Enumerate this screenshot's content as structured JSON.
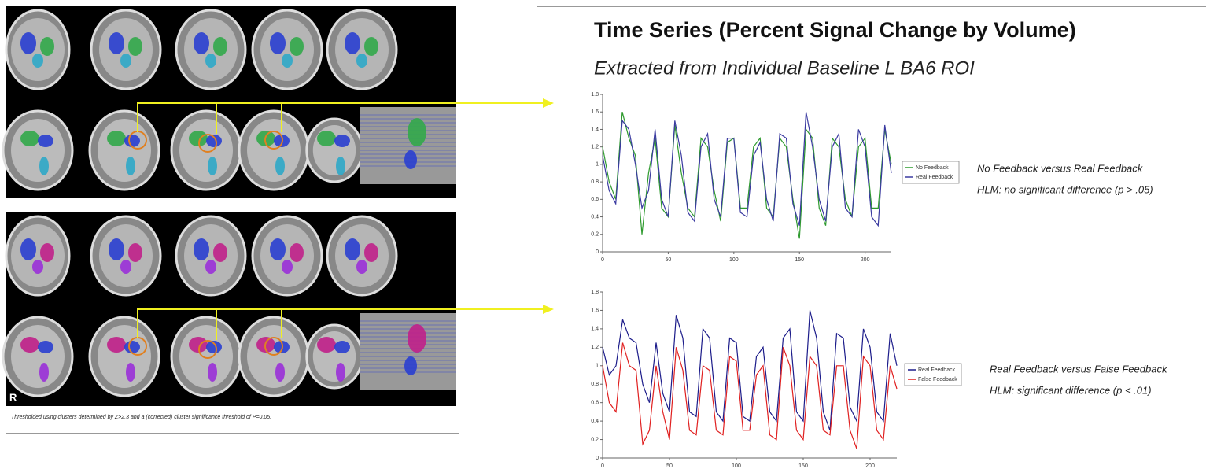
{
  "title": "Time Series (Percent Signal Change by Volume)",
  "subtitle": "Extracted from Individual Baseline L BA6 ROI",
  "panel_label": "R",
  "footnote": "Thresholded using clusters determined by Z>2.3 and a (corrected) cluster significance threshold of P=0.05.",
  "chart_data": [
    {
      "type": "line",
      "xlim": [
        0,
        220
      ],
      "ylim": [
        0,
        1.8
      ],
      "xticks": [
        0,
        50,
        100,
        150,
        200
      ],
      "yticks": [
        0,
        0.2,
        0.4,
        0.6,
        0.8,
        1,
        1.2,
        1.4,
        1.6,
        1.8
      ],
      "legend": "right",
      "x": [
        0,
        5,
        10,
        15,
        20,
        25,
        30,
        35,
        40,
        45,
        50,
        55,
        60,
        65,
        70,
        75,
        80,
        85,
        90,
        95,
        100,
        105,
        110,
        115,
        120,
        125,
        130,
        135,
        140,
        145,
        150,
        155,
        160,
        165,
        170,
        175,
        180,
        185,
        190,
        195,
        200,
        205,
        210,
        215,
        220
      ],
      "series": [
        {
          "name": "No Feedback",
          "color": "#2e9a2e",
          "values": [
            1.2,
            0.8,
            0.6,
            1.6,
            1.3,
            1.1,
            0.2,
            0.9,
            1.3,
            0.5,
            0.4,
            1.45,
            0.9,
            0.5,
            0.4,
            1.3,
            1.2,
            0.7,
            0.35,
            1.25,
            1.3,
            0.5,
            0.5,
            1.2,
            1.3,
            0.5,
            0.4,
            1.3,
            1.2,
            0.6,
            0.15,
            1.4,
            1.3,
            0.5,
            0.3,
            1.3,
            1.2,
            0.6,
            0.4,
            1.2,
            1.3,
            0.5,
            0.5,
            1.4,
            1.0
          ]
        },
        {
          "name": "Real Feedback",
          "color": "#3a3aa0",
          "values": [
            1.1,
            0.7,
            0.55,
            1.5,
            1.4,
            1.0,
            0.5,
            0.7,
            1.4,
            0.6,
            0.4,
            1.5,
            1.1,
            0.45,
            0.35,
            1.2,
            1.35,
            0.6,
            0.4,
            1.3,
            1.3,
            0.45,
            0.4,
            1.1,
            1.25,
            0.6,
            0.35,
            1.35,
            1.3,
            0.55,
            0.3,
            1.6,
            1.2,
            0.6,
            0.35,
            1.2,
            1.35,
            0.5,
            0.4,
            1.4,
            1.2,
            0.4,
            0.3,
            1.45,
            0.9
          ]
        }
      ],
      "annotations": [
        "No Feedback versus Real Feedback",
        "HLM: no significant difference (p > .05)"
      ]
    },
    {
      "type": "line",
      "xlim": [
        0,
        220
      ],
      "ylim": [
        0,
        1.8
      ],
      "xticks": [
        0,
        50,
        100,
        150,
        200
      ],
      "yticks": [
        0,
        0.2,
        0.4,
        0.6,
        0.8,
        1,
        1.2,
        1.4,
        1.6,
        1.8
      ],
      "legend": "right",
      "x": [
        0,
        5,
        10,
        15,
        20,
        25,
        30,
        35,
        40,
        45,
        50,
        55,
        60,
        65,
        70,
        75,
        80,
        85,
        90,
        95,
        100,
        105,
        110,
        115,
        120,
        125,
        130,
        135,
        140,
        145,
        150,
        155,
        160,
        165,
        170,
        175,
        180,
        185,
        190,
        195,
        200,
        205,
        210,
        215,
        220
      ],
      "series": [
        {
          "name": "Real Feedback",
          "color": "#1c1c8a",
          "values": [
            1.2,
            0.9,
            1.0,
            1.5,
            1.3,
            1.25,
            0.8,
            0.6,
            1.25,
            0.7,
            0.5,
            1.55,
            1.3,
            0.5,
            0.45,
            1.4,
            1.3,
            0.5,
            0.4,
            1.3,
            1.25,
            0.45,
            0.4,
            1.1,
            1.2,
            0.5,
            0.4,
            1.3,
            1.4,
            0.5,
            0.4,
            1.6,
            1.3,
            0.5,
            0.3,
            1.35,
            1.3,
            0.55,
            0.4,
            1.4,
            1.2,
            0.5,
            0.4,
            1.35,
            1.0
          ]
        },
        {
          "name": "False Feedback",
          "color": "#e02020",
          "values": [
            1.0,
            0.6,
            0.5,
            1.25,
            1.0,
            0.95,
            0.15,
            0.3,
            1.0,
            0.5,
            0.2,
            1.2,
            0.95,
            0.3,
            0.25,
            1.0,
            0.95,
            0.3,
            0.25,
            1.1,
            1.05,
            0.3,
            0.3,
            0.9,
            1.0,
            0.25,
            0.2,
            1.2,
            1.0,
            0.3,
            0.2,
            1.1,
            1.0,
            0.3,
            0.25,
            1.0,
            1.0,
            0.3,
            0.1,
            1.1,
            1.0,
            0.3,
            0.2,
            1.0,
            0.75
          ]
        }
      ],
      "annotations": [
        "Real Feedback versus False Feedback",
        "HLM: significant difference (p < .01)"
      ]
    }
  ]
}
